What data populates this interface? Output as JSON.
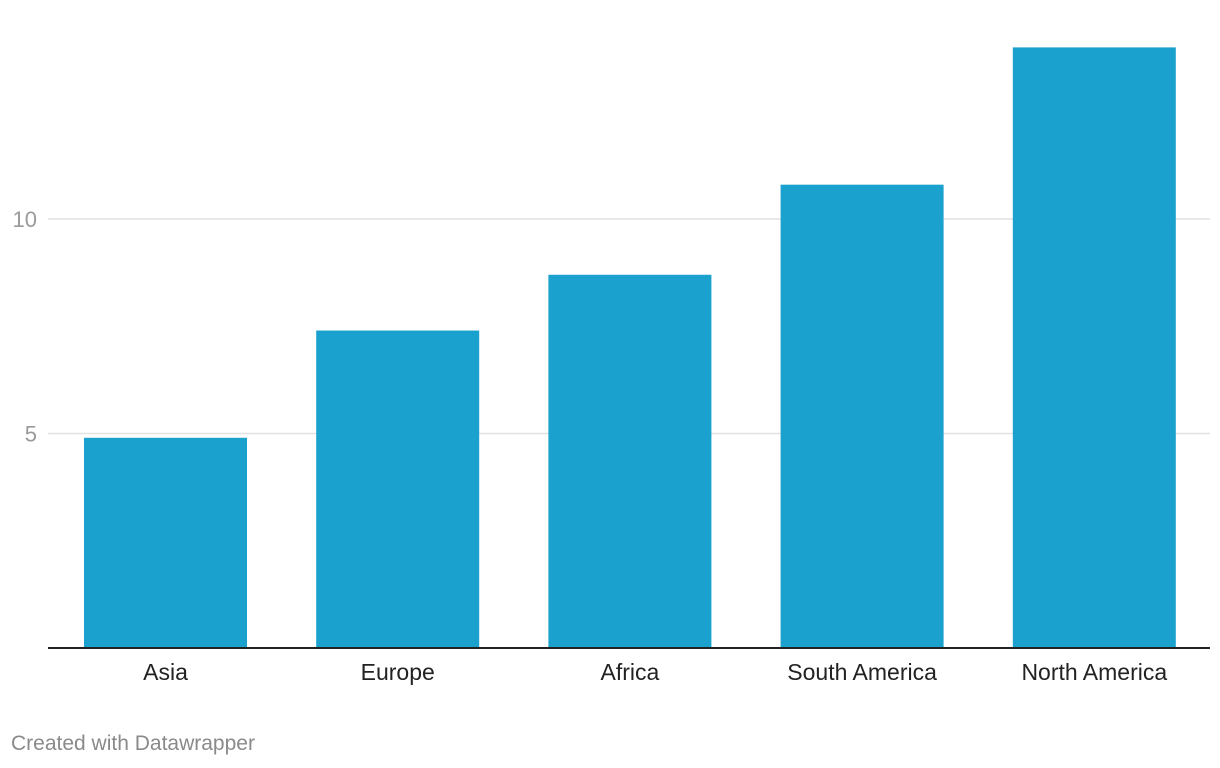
{
  "chart_data": {
    "type": "bar",
    "categories": [
      "Asia",
      "Europe",
      "Africa",
      "South America",
      "North America"
    ],
    "values": [
      4.9,
      7.4,
      8.7,
      10.8,
      14.0
    ],
    "ylim": [
      0,
      14
    ],
    "y_ticks": [
      5,
      10
    ],
    "grid": true,
    "bar_color": "#1aa1ce",
    "gridline_color": "#e2e2e2",
    "axis_color": "#222222"
  },
  "footer": {
    "credit": "Created with Datawrapper"
  }
}
